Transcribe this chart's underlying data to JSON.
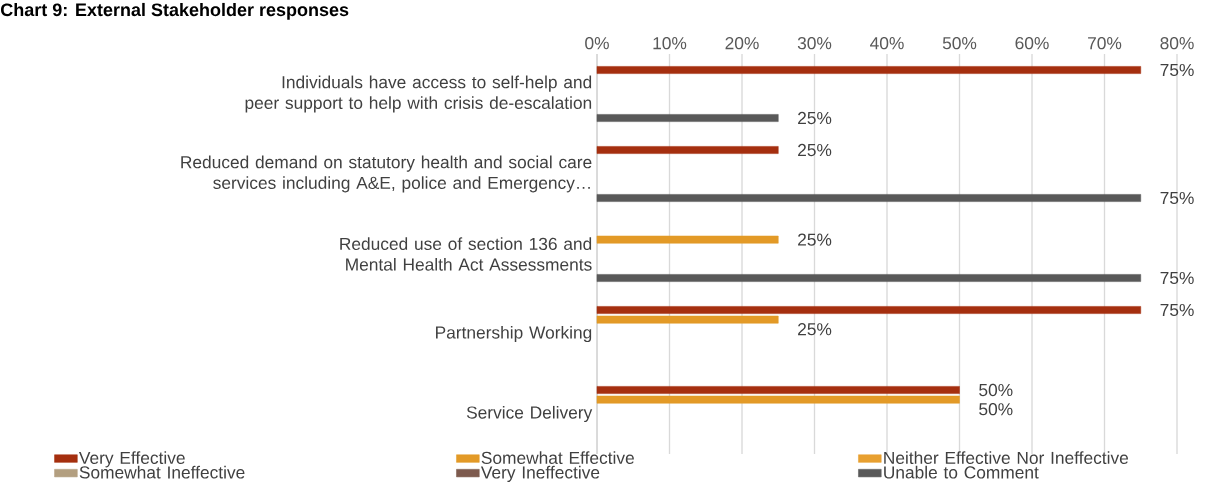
{
  "chart_data": {
    "type": "bar",
    "orientation": "horizontal",
    "title": "Chart 9: External Stakeholder responses",
    "categories": [
      "Individuals have access to self-help and peer support to help with crisis de-escalation",
      "Reduced demand on statutory health and social care services including A&E, police and Emergency…",
      "Reduced use of section 136 and Mental Health Act Assessments",
      "Partnership Working",
      "Service Delivery"
    ],
    "series": [
      {
        "name": "Very Effective",
        "color": "#a52f0f",
        "values": [
          75,
          25,
          null,
          75,
          50
        ],
        "value_labels": [
          "75%",
          "25%",
          null,
          "75%",
          "50%"
        ]
      },
      {
        "name": "Somewhat Effective",
        "color": "#e39a27",
        "values": [
          null,
          null,
          25,
          25,
          50
        ],
        "value_labels": [
          null,
          null,
          "25%",
          "25%",
          "50%"
        ]
      },
      {
        "name": "Neither Effective Nor Ineffective",
        "color": "#e8a030",
        "values": [
          null,
          null,
          null,
          null,
          null
        ],
        "value_labels": [
          null,
          null,
          null,
          null,
          null
        ]
      },
      {
        "name": "Somewhat Ineffective",
        "color": "#b39f80",
        "values": [
          null,
          null,
          null,
          null,
          null
        ],
        "value_labels": [
          null,
          null,
          null,
          null,
          null
        ]
      },
      {
        "name": "Very Ineffective",
        "color": "#7d5a4e",
        "values": [
          null,
          null,
          null,
          null,
          null
        ],
        "value_labels": [
          null,
          null,
          null,
          null,
          null
        ]
      },
      {
        "name": "Unable to Comment",
        "color": "#595959",
        "values": [
          25,
          75,
          75,
          null,
          null
        ],
        "value_labels": [
          "25%",
          "75%",
          "75%",
          null,
          null
        ]
      }
    ],
    "xlim": [
      0,
      80
    ],
    "xticks": [
      {
        "value": 0,
        "label": "0%"
      },
      {
        "value": 10,
        "label": "10%"
      },
      {
        "value": 20,
        "label": "20%"
      },
      {
        "value": 30,
        "label": "30%"
      },
      {
        "value": 40,
        "label": "40%"
      },
      {
        "value": 50,
        "label": "50%"
      },
      {
        "value": 60,
        "label": "60%"
      },
      {
        "value": 70,
        "label": "70%"
      },
      {
        "value": 80,
        "label": "80%"
      }
    ],
    "grid": "x",
    "legend": "bottom"
  }
}
